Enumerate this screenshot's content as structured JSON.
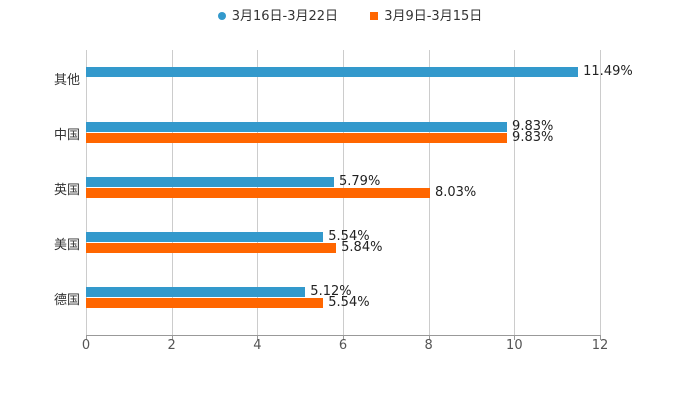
{
  "chart_data": {
    "type": "bar",
    "orientation": "horizontal",
    "title": "",
    "xlabel": "",
    "ylabel": "",
    "xlim": [
      0,
      12
    ],
    "xticks": [
      "0",
      "2",
      "4",
      "6",
      "8",
      "10",
      "12"
    ],
    "grid": true,
    "legend_position": "top",
    "categories": [
      "其他",
      "中国",
      "英国",
      "美国",
      "德国"
    ],
    "series": [
      {
        "name": "3月16日-3月22日",
        "color": "#3399cc",
        "values": [
          11.49,
          9.83,
          5.79,
          5.54,
          5.12
        ],
        "labels": [
          "11.49%",
          "9.83%",
          "5.79%",
          "5.54%",
          "5.12%"
        ]
      },
      {
        "name": "3月9日-3月15日",
        "color": "#ff6600",
        "values": [
          null,
          9.83,
          8.03,
          5.84,
          5.54
        ],
        "labels": [
          "",
          "9.83%",
          "8.03%",
          "5.84%",
          "5.54%"
        ]
      }
    ]
  },
  "legend": {
    "s1": "3月16日-3月22日",
    "s2": "3月9日-3月15日"
  }
}
